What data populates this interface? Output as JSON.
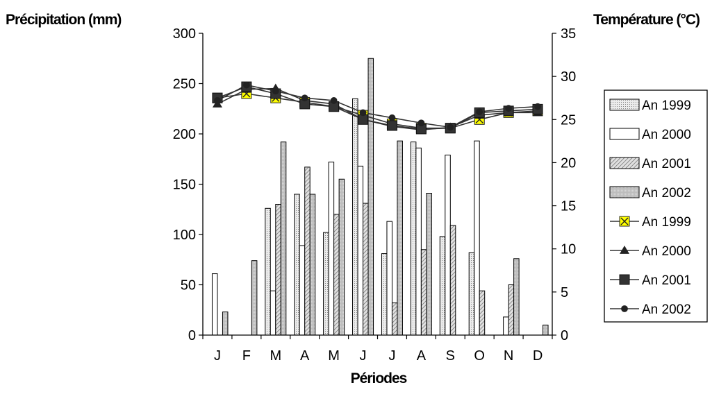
{
  "chart_data": {
    "type": "bar+line",
    "ylabel_left": "Précipitation (mm)",
    "ylabel_right": "Température (°C)",
    "xlabel": "Périodes",
    "categories": [
      "J",
      "F",
      "M",
      "A",
      "M",
      "J",
      "J",
      "A",
      "S",
      "O",
      "N",
      "D"
    ],
    "ylim_left": [
      0,
      300
    ],
    "yticks_left": [
      "0",
      "50",
      "100",
      "150",
      "200",
      "250",
      "300"
    ],
    "ylim_right": [
      0,
      35
    ],
    "yticks_right": [
      "0",
      "5",
      "10",
      "15",
      "20",
      "25",
      "30",
      "35"
    ],
    "bar_series": [
      {
        "name": "An 1999",
        "values": [
          0,
          0,
          126,
          140,
          102,
          235,
          81,
          192,
          98,
          82,
          0,
          0
        ]
      },
      {
        "name": "An 2000",
        "values": [
          61,
          0,
          44,
          89,
          172,
          168,
          113,
          186,
          179,
          193,
          18,
          0
        ]
      },
      {
        "name": "An 2001",
        "values": [
          0,
          0,
          130,
          167,
          120,
          131,
          32,
          85,
          109,
          44,
          50,
          0
        ]
      },
      {
        "name": "An 2002",
        "values": [
          23,
          74,
          192,
          140,
          155,
          275,
          193,
          141,
          0,
          0,
          76,
          10
        ]
      }
    ],
    "bar_series_order": [
      "An 2002",
      "An 2000",
      "An 1999",
      "An 2002",
      "An 1999",
      "An 2000",
      "An 2001",
      "An 2002",
      "An 1999",
      "An 2001",
      "An 2002",
      "An 2000"
    ],
    "line_series": [
      {
        "name": "An 1999",
        "marker": "x-square",
        "values": [
          27.5,
          28.0,
          27.5,
          27.0,
          26.5,
          25.5,
          24.5,
          24.0,
          24.0,
          25.0,
          25.8,
          26.0
        ]
      },
      {
        "name": "An 2000",
        "marker": "triangle",
        "values": [
          26.8,
          28.5,
          28.6,
          27.2,
          26.8,
          25.0,
          24.2,
          23.8,
          24.1,
          25.5,
          25.8,
          25.8
        ]
      },
      {
        "name": "An 2001",
        "marker": "square",
        "values": [
          27.5,
          28.8,
          28.0,
          26.8,
          26.5,
          25.0,
          24.3,
          23.9,
          24.0,
          25.8,
          26.0,
          26.2
        ]
      },
      {
        "name": "An 2002",
        "marker": "circle",
        "values": [
          27.2,
          29.0,
          28.3,
          27.5,
          27.2,
          25.8,
          25.2,
          24.6,
          24.1,
          25.9,
          26.3,
          26.5
        ]
      }
    ],
    "legend_position": "right",
    "grid": false,
    "colors": {
      "bar_outline": "#000000",
      "bar_fill_1999": "#e8e8e8",
      "bar_fill_2000": "#ffffff",
      "bar_fill_2001": "#cfcfcf",
      "bar_fill_2002": "#c0c0c0",
      "line": "#333333",
      "x_marker_fill": "#ffff00"
    }
  }
}
